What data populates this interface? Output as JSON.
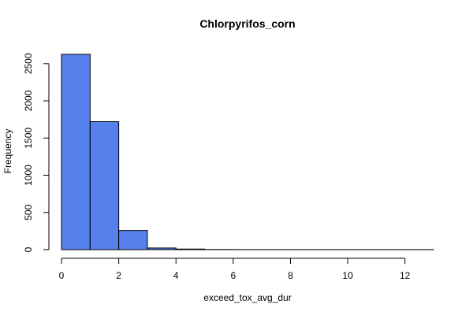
{
  "chart_data": {
    "type": "bar",
    "title": "Chlorpyrifos_corn",
    "xlabel": "exceed_tox_avg_dur",
    "ylabel": "Frequency",
    "bin_edges": [
      0,
      1,
      2,
      3,
      4,
      5,
      6,
      7,
      8,
      9,
      10,
      11,
      12,
      13
    ],
    "values": [
      2625,
      1720,
      258,
      22,
      8,
      2,
      1,
      1,
      1,
      1,
      1,
      1,
      1
    ],
    "xlim": [
      0,
      13
    ],
    "ylim": [
      0,
      2625
    ],
    "xticks": [
      0,
      2,
      4,
      6,
      8,
      10,
      12
    ],
    "yticks": [
      0,
      500,
      1000,
      1500,
      2000,
      2500
    ],
    "bar_color": "#5680eb",
    "grid": false,
    "legend": false
  }
}
